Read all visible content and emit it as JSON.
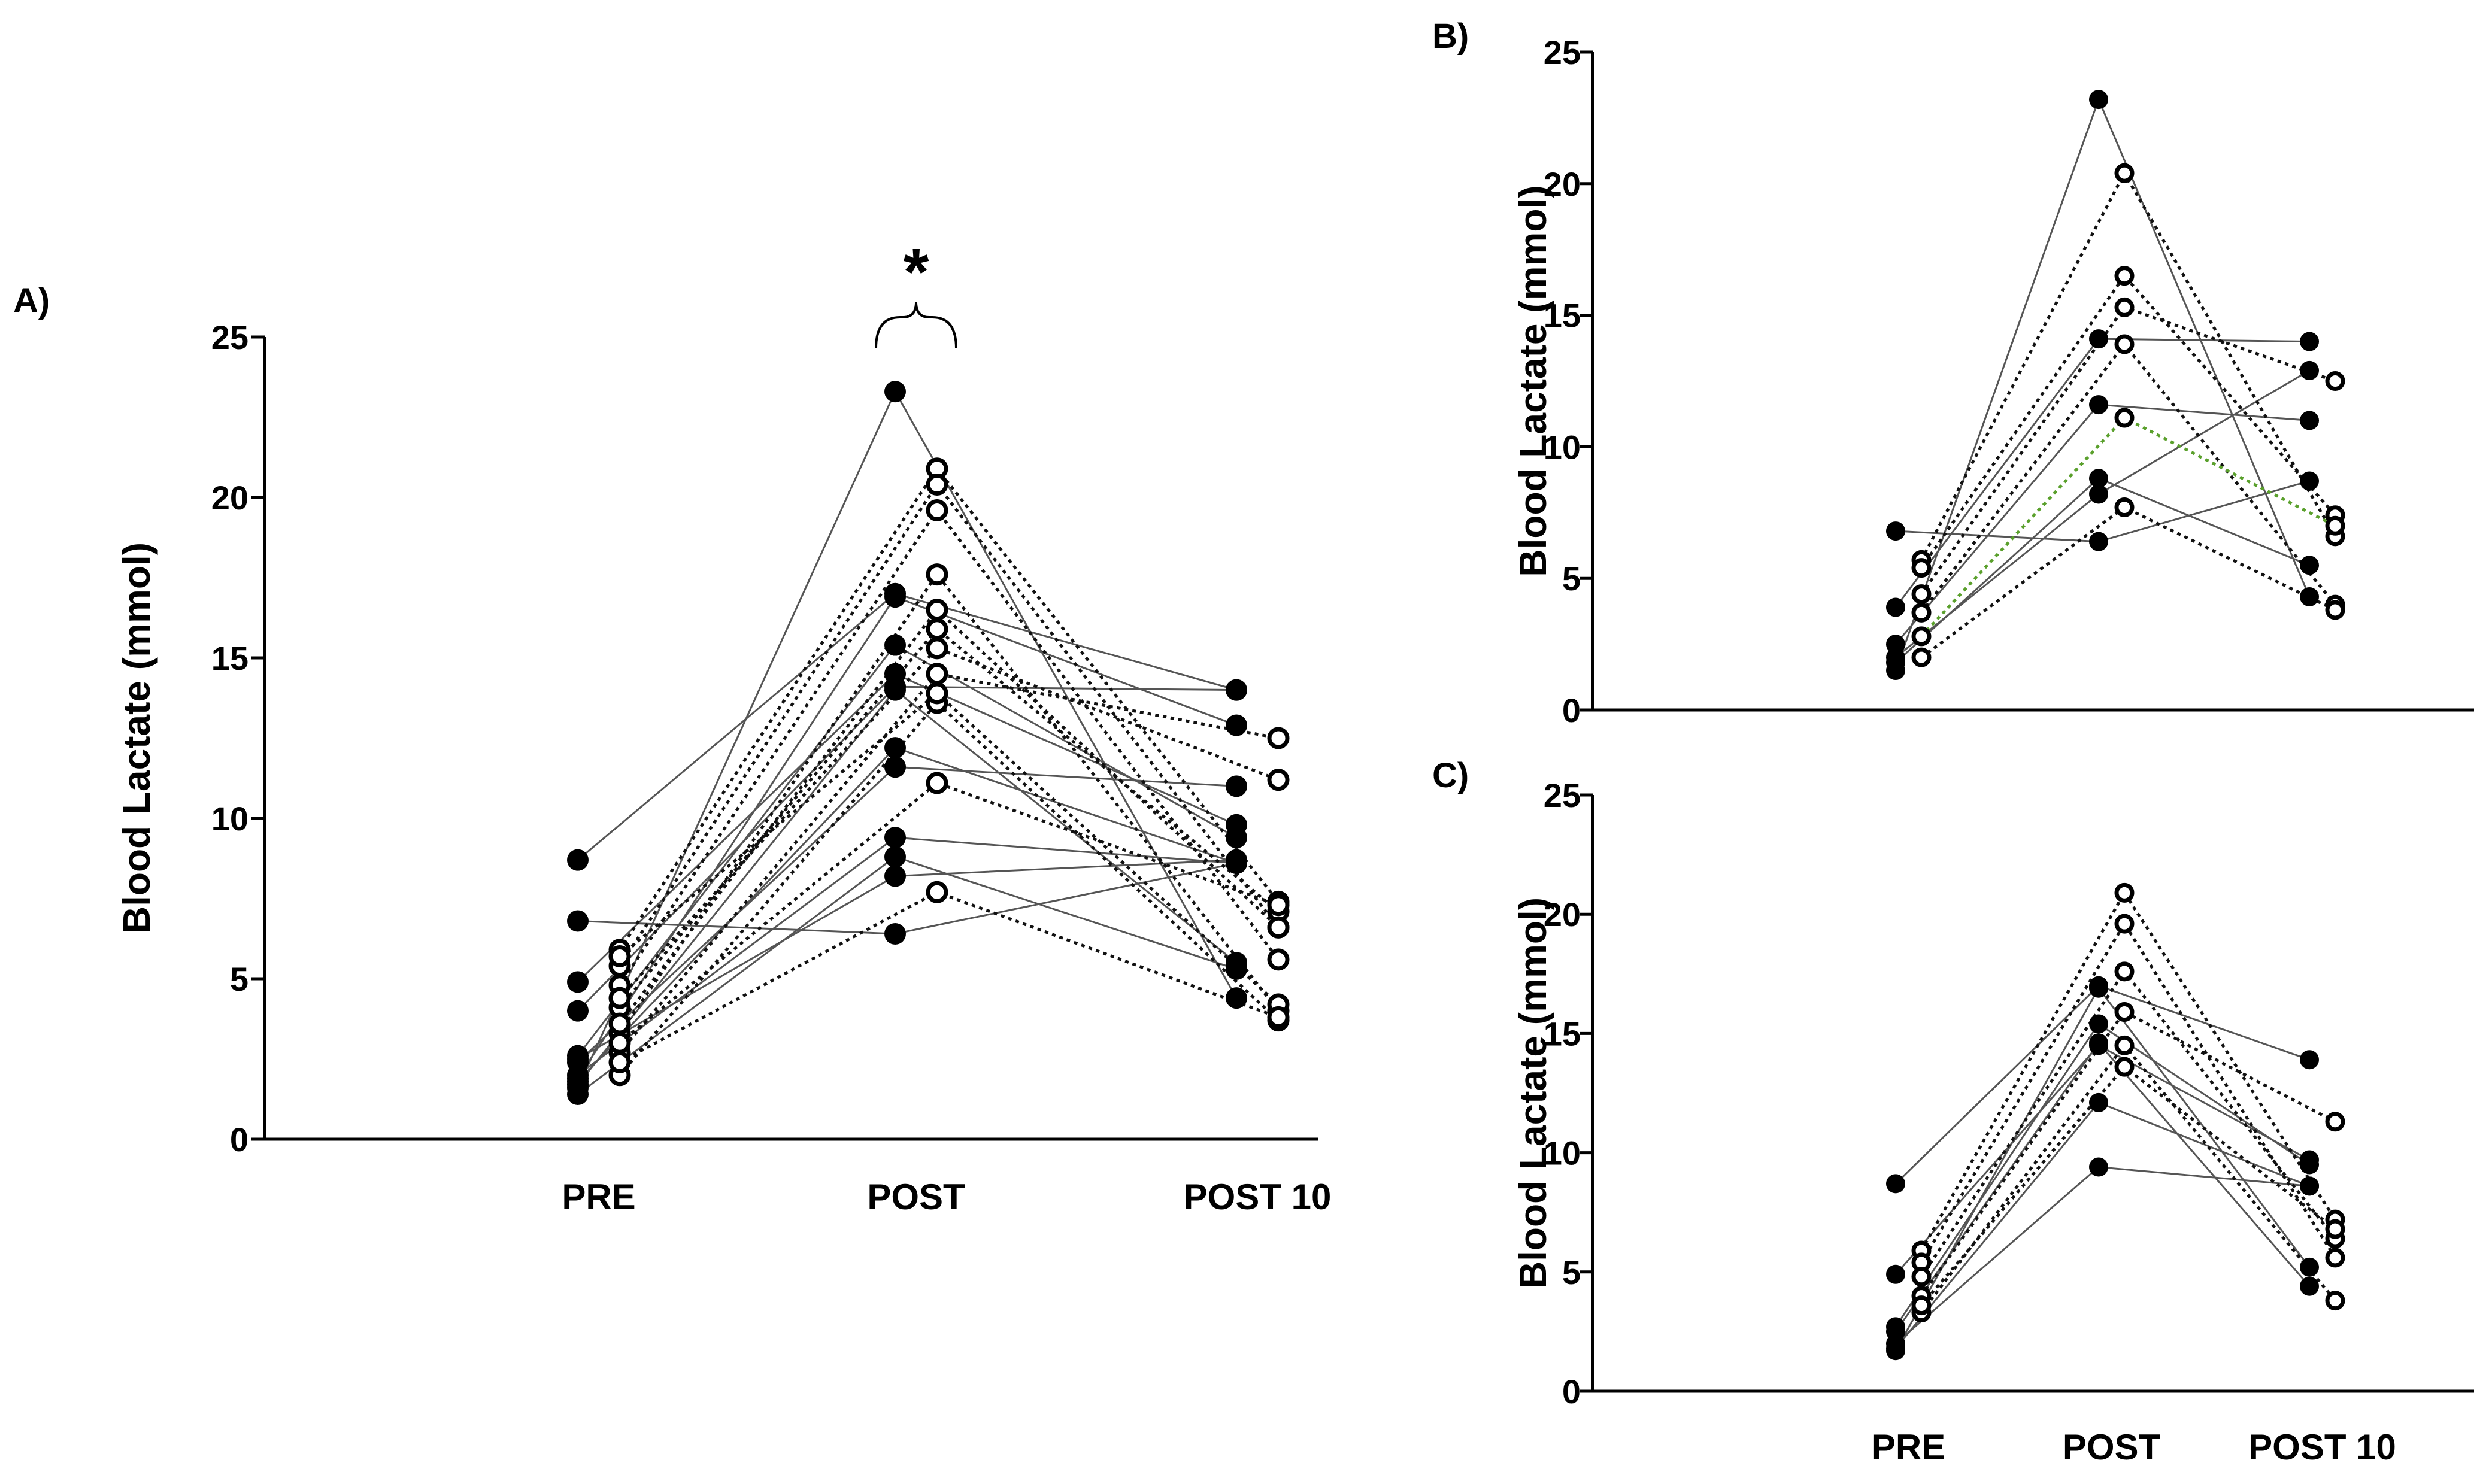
{
  "figure": {
    "significance_marker": "*"
  },
  "chart_data": [
    {
      "panel": "A)",
      "type": "scatter",
      "subtype": "paired-lines",
      "categories": [
        "PRE",
        "POST",
        "POST 10"
      ],
      "ylabel": "Blood Lactate (mmol)",
      "xlabel": "",
      "ylim": [
        0,
        25
      ],
      "yticks": [
        0,
        5,
        10,
        15,
        20,
        25
      ],
      "grid": false,
      "legend": "none",
      "annotation": {
        "text": "*",
        "category": "POST",
        "type": "brace"
      },
      "series": [
        {
          "marker": "filled",
          "line": "solid",
          "values": [
            1.6,
            23.3,
            4.4
          ]
        },
        {
          "marker": "filled",
          "line": "solid",
          "values": [
            6.8,
            6.4,
            8.6
          ]
        },
        {
          "marker": "filled",
          "line": "solid",
          "values": [
            8.7,
            17.0,
            14.0
          ]
        },
        {
          "marker": "filled",
          "line": "solid",
          "values": [
            4.9,
            14.5,
            9.8
          ]
        },
        {
          "marker": "filled",
          "line": "solid",
          "values": [
            2.6,
            15.4,
            9.4
          ]
        },
        {
          "marker": "filled",
          "line": "solid",
          "values": [
            1.8,
            12.2,
            8.6
          ]
        },
        {
          "marker": "filled",
          "line": "solid",
          "values": [
            2.0,
            9.4,
            8.6
          ]
        },
        {
          "marker": "filled",
          "line": "solid",
          "values": [
            4.0,
            14.1,
            14.0
          ]
        },
        {
          "marker": "filled",
          "line": "solid",
          "values": [
            2.4,
            11.6,
            11.0
          ]
        },
        {
          "marker": "filled",
          "line": "solid",
          "values": [
            1.4,
            8.8,
            5.3
          ]
        },
        {
          "marker": "filled",
          "line": "solid",
          "values": [
            2.5,
            8.2,
            8.7
          ]
        },
        {
          "marker": "filled",
          "line": "solid",
          "values": [
            1.9,
            16.9,
            12.9
          ]
        },
        {
          "marker": "filled",
          "line": "solid",
          "values": [
            1.7,
            14.0,
            5.5
          ]
        },
        {
          "marker": "open",
          "line": "dotted",
          "values": [
            5.9,
            20.9,
            7.4
          ]
        },
        {
          "marker": "open",
          "line": "dotted",
          "values": [
            4.8,
            19.6,
            5.6
          ]
        },
        {
          "marker": "open",
          "line": "dotted",
          "values": [
            5.4,
            20.4,
            6.6
          ]
        },
        {
          "marker": "open",
          "line": "dotted",
          "values": [
            3.3,
            17.6,
            4.0
          ]
        },
        {
          "marker": "open",
          "line": "dotted",
          "values": [
            4.1,
            15.9,
            7.1
          ]
        },
        {
          "marker": "open",
          "line": "dotted",
          "values": [
            2.7,
            14.5,
            12.5
          ]
        },
        {
          "marker": "open",
          "line": "dotted",
          "values": [
            2.0,
            13.6,
            3.7
          ]
        },
        {
          "marker": "open",
          "line": "dotted",
          "values": [
            3.6,
            16.5,
            6.6
          ]
        },
        {
          "marker": "open",
          "line": "dotted",
          "values": [
            4.4,
            15.3,
            11.2
          ]
        },
        {
          "marker": "open",
          "line": "dotted",
          "values": [
            5.7,
            13.9,
            4.2
          ]
        },
        {
          "marker": "open",
          "line": "dotted",
          "values": [
            3.0,
            11.1,
            7.3
          ]
        },
        {
          "marker": "open",
          "line": "dotted",
          "values": [
            2.4,
            7.7,
            3.8
          ]
        }
      ]
    },
    {
      "panel": "B)",
      "type": "scatter",
      "subtype": "paired-lines",
      "categories": [
        "PRE",
        "POST",
        "POST 10"
      ],
      "show_category_labels": false,
      "ylabel": "Blood Lactate (mmol)",
      "xlabel": "",
      "ylim": [
        0,
        25
      ],
      "yticks": [
        0,
        5,
        10,
        15,
        20,
        25
      ],
      "grid": false,
      "legend": "none",
      "series": [
        {
          "marker": "filled",
          "line": "solid",
          "values": [
            1.5,
            23.2,
            4.3
          ]
        },
        {
          "marker": "filled",
          "line": "solid",
          "values": [
            6.8,
            6.4,
            8.7
          ]
        },
        {
          "marker": "filled",
          "line": "solid",
          "values": [
            3.9,
            14.1,
            14.0
          ]
        },
        {
          "marker": "filled",
          "line": "solid",
          "values": [
            2.5,
            11.6,
            11.0
          ]
        },
        {
          "marker": "filled",
          "line": "solid",
          "values": [
            1.8,
            8.8,
            5.5
          ]
        },
        {
          "marker": "filled",
          "line": "solid",
          "values": [
            2.0,
            8.2,
            12.9
          ]
        },
        {
          "marker": "open",
          "line": "dotted",
          "values": [
            5.7,
            20.4,
            6.6
          ]
        },
        {
          "marker": "open",
          "line": "dotted",
          "values": [
            5.4,
            16.5,
            7.4
          ]
        },
        {
          "marker": "open",
          "line": "dotted",
          "values": [
            4.4,
            15.3,
            12.5
          ]
        },
        {
          "marker": "open",
          "line": "dotted",
          "values": [
            3.7,
            13.9,
            4.0
          ]
        },
        {
          "marker": "open",
          "line": "dotted",
          "values": [
            2.8,
            11.1,
            7.0
          ],
          "color": "#5aa02c"
        },
        {
          "marker": "open",
          "line": "dotted",
          "values": [
            2.0,
            7.7,
            3.8
          ]
        }
      ]
    },
    {
      "panel": "C)",
      "type": "scatter",
      "subtype": "paired-lines",
      "categories": [
        "PRE",
        "POST",
        "POST 10"
      ],
      "ylabel": "Blood Lactate (mmol)",
      "xlabel": "",
      "ylim": [
        0,
        25
      ],
      "yticks": [
        0,
        5,
        10,
        15,
        20,
        25
      ],
      "grid": false,
      "legend": "none",
      "series": [
        {
          "marker": "filled",
          "line": "solid",
          "values": [
            8.7,
            17.0,
            13.9
          ]
        },
        {
          "marker": "filled",
          "line": "solid",
          "values": [
            4.9,
            14.5,
            9.7
          ]
        },
        {
          "marker": "filled",
          "line": "solid",
          "values": [
            2.7,
            15.4,
            9.5
          ]
        },
        {
          "marker": "filled",
          "line": "solid",
          "values": [
            1.8,
            12.1,
            8.6
          ]
        },
        {
          "marker": "filled",
          "line": "solid",
          "values": [
            2.0,
            9.4,
            8.6
          ]
        },
        {
          "marker": "filled",
          "line": "solid",
          "values": [
            1.7,
            16.9,
            5.2
          ]
        },
        {
          "marker": "filled",
          "line": "solid",
          "values": [
            2.5,
            14.6,
            4.4
          ]
        },
        {
          "marker": "open",
          "line": "dotted",
          "values": [
            5.9,
            20.9,
            7.2
          ]
        },
        {
          "marker": "open",
          "line": "dotted",
          "values": [
            5.4,
            19.6,
            5.6
          ]
        },
        {
          "marker": "open",
          "line": "dotted",
          "values": [
            4.8,
            17.6,
            6.4
          ]
        },
        {
          "marker": "open",
          "line": "dotted",
          "values": [
            4.0,
            15.9,
            11.3
          ]
        },
        {
          "marker": "open",
          "line": "dotted",
          "values": [
            3.3,
            14.5,
            3.8
          ]
        },
        {
          "marker": "open",
          "line": "dotted",
          "values": [
            3.6,
            13.6,
            6.8
          ]
        }
      ]
    }
  ]
}
